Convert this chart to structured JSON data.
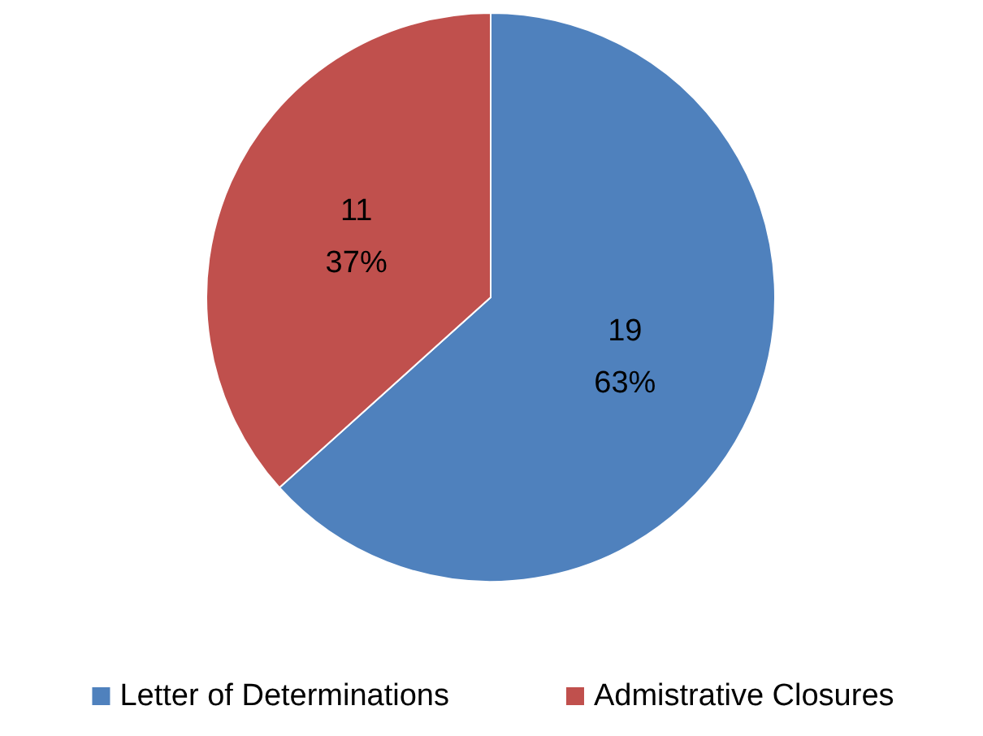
{
  "chart_data": {
    "type": "pie",
    "categories": [
      "Letter of Determinations",
      "Admistrative Closures"
    ],
    "values": [
      19,
      11
    ],
    "colors": [
      "#4f81bd",
      "#c0504d"
    ],
    "value_labels": [
      "19\n63%",
      "11\n37%"
    ],
    "legend": "bottom"
  }
}
